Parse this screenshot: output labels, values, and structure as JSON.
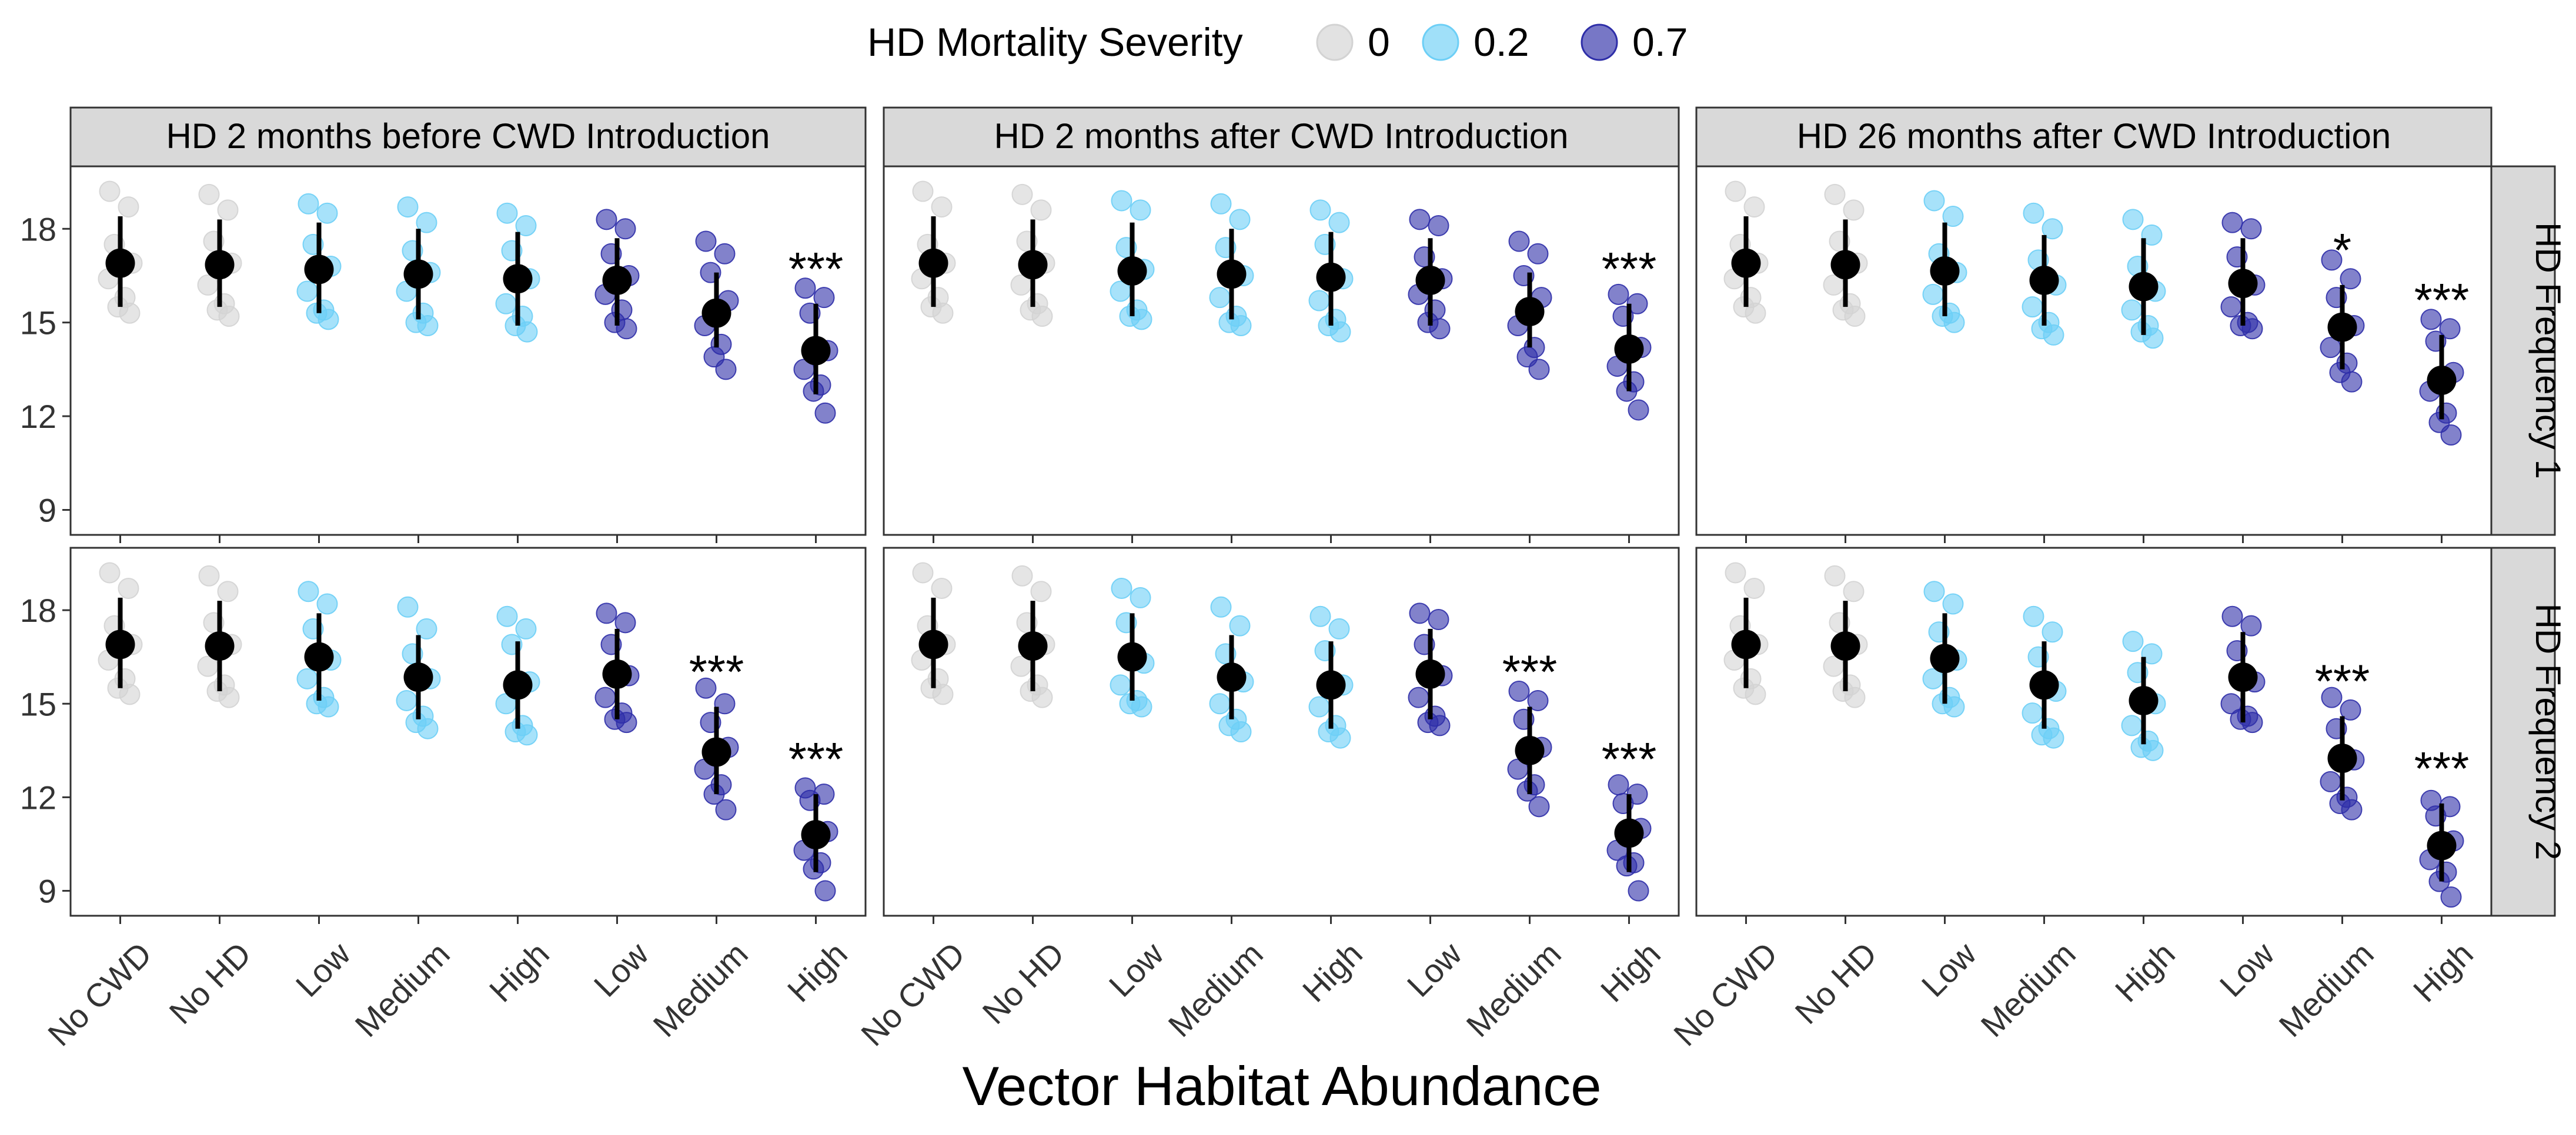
{
  "chart_data": {
    "type": "scatter",
    "legend": {
      "title": "HD Mortality Severity",
      "position": "top",
      "entries": [
        {
          "label": "0",
          "color": "#d3d3d3"
        },
        {
          "label": "0.2",
          "color": "#6dcff6"
        },
        {
          "label": "0.7",
          "color": "#2e2ea8"
        }
      ]
    },
    "xlabel": "Vector Habitat Abundance",
    "ylabel": "",
    "ylim": [
      8.2,
      20.0
    ],
    "yticks": [
      9,
      12,
      15,
      18
    ],
    "categories": [
      "No CWD",
      "No HD",
      "Low",
      "Medium",
      "High",
      "Low",
      "Medium",
      "High"
    ],
    "category_severity": [
      "0",
      "0",
      "0.2",
      "0.2",
      "0.2",
      "0.7",
      "0.7",
      "0.7"
    ],
    "column_facets": [
      "HD 2 months before CWD Introduction",
      "HD 2 months after CWD Introduction",
      "HD 26 months after CWD Introduction"
    ],
    "row_facets": [
      "HD Frequency 1",
      "HD Frequency 2"
    ],
    "panels": [
      {
        "row": "HD Frequency 1",
        "column": "HD 2 months before CWD Introduction",
        "mean": [
          16.9,
          16.85,
          16.7,
          16.55,
          16.4,
          16.35,
          15.3,
          14.1
        ],
        "lower": [
          15.5,
          15.5,
          15.3,
          15.1,
          14.9,
          14.9,
          14.2,
          12.7
        ],
        "upper": [
          18.4,
          18.3,
          18.2,
          18.0,
          17.9,
          17.7,
          16.6,
          15.6
        ],
        "points": [
          [
            19.2,
            18.7,
            17.5,
            16.9,
            16.4,
            15.8,
            15.5,
            15.3
          ],
          [
            19.1,
            18.6,
            17.6,
            16.9,
            16.2,
            15.6,
            15.4,
            15.2
          ],
          [
            18.8,
            18.5,
            17.5,
            16.8,
            16.0,
            15.4,
            15.3,
            15.1
          ],
          [
            18.7,
            18.2,
            17.3,
            16.6,
            16.0,
            15.3,
            15.0,
            14.9
          ],
          [
            18.5,
            18.1,
            17.3,
            16.4,
            15.6,
            15.2,
            14.9,
            14.7
          ],
          [
            18.3,
            18.0,
            17.2,
            16.5,
            15.9,
            15.4,
            15.0,
            14.8
          ],
          [
            17.6,
            17.2,
            16.6,
            15.7,
            14.9,
            14.3,
            13.9,
            13.5
          ],
          [
            16.1,
            15.8,
            15.3,
            14.1,
            13.5,
            13.0,
            12.8,
            12.1
          ]
        ],
        "significance": [
          "",
          "",
          "",
          "",
          "",
          "",
          "",
          "***"
        ]
      },
      {
        "row": "HD Frequency 1",
        "column": "HD 2 months after CWD Introduction",
        "mean": [
          16.9,
          16.85,
          16.65,
          16.55,
          16.45,
          16.35,
          15.35,
          14.15
        ],
        "lower": [
          15.5,
          15.5,
          15.2,
          15.1,
          14.9,
          14.9,
          14.2,
          12.8
        ],
        "upper": [
          18.4,
          18.3,
          18.2,
          18.0,
          17.9,
          17.7,
          16.6,
          15.6
        ],
        "points": [
          [
            19.2,
            18.7,
            17.5,
            16.9,
            16.4,
            15.8,
            15.5,
            15.3
          ],
          [
            19.1,
            18.6,
            17.6,
            16.9,
            16.2,
            15.6,
            15.4,
            15.2
          ],
          [
            18.9,
            18.6,
            17.4,
            16.7,
            16.0,
            15.4,
            15.2,
            15.1
          ],
          [
            18.8,
            18.3,
            17.4,
            16.5,
            15.8,
            15.2,
            15.0,
            14.9
          ],
          [
            18.6,
            18.2,
            17.5,
            16.4,
            15.7,
            15.1,
            14.9,
            14.7
          ],
          [
            18.3,
            18.1,
            17.1,
            16.4,
            15.9,
            15.4,
            15.0,
            14.8
          ],
          [
            17.6,
            17.2,
            16.5,
            15.8,
            14.9,
            14.2,
            13.9,
            13.5
          ],
          [
            15.9,
            15.6,
            15.2,
            14.2,
            13.6,
            13.1,
            12.8,
            12.2
          ]
        ],
        "significance": [
          "",
          "",
          "",
          "",
          "",
          "",
          "",
          "***"
        ]
      },
      {
        "row": "HD Frequency 1",
        "column": "HD 26 months after CWD Introduction",
        "mean": [
          16.9,
          16.85,
          16.65,
          16.35,
          16.15,
          16.25,
          14.85,
          13.15
        ],
        "lower": [
          15.5,
          15.5,
          15.2,
          14.9,
          14.6,
          14.9,
          13.5,
          11.9
        ],
        "upper": [
          18.4,
          18.3,
          18.2,
          17.8,
          17.7,
          17.7,
          16.2,
          14.6
        ],
        "points": [
          [
            19.2,
            18.7,
            17.5,
            16.9,
            16.4,
            15.8,
            15.5,
            15.3
          ],
          [
            19.1,
            18.6,
            17.6,
            16.9,
            16.2,
            15.6,
            15.4,
            15.2
          ],
          [
            18.9,
            18.4,
            17.2,
            16.6,
            15.9,
            15.3,
            15.2,
            15.0
          ],
          [
            18.5,
            18.0,
            17.0,
            16.2,
            15.5,
            15.0,
            14.8,
            14.6
          ],
          [
            18.3,
            17.8,
            16.8,
            16.0,
            15.4,
            14.9,
            14.7,
            14.5
          ],
          [
            18.2,
            18.0,
            17.1,
            16.2,
            15.5,
            15.0,
            14.9,
            14.8
          ],
          [
            17.0,
            16.4,
            15.8,
            14.9,
            14.2,
            13.7,
            13.4,
            13.1
          ],
          [
            15.1,
            14.8,
            14.4,
            13.4,
            12.8,
            12.1,
            11.8,
            11.4
          ]
        ],
        "significance": [
          "",
          "",
          "",
          "",
          "",
          "",
          "*",
          "***"
        ]
      },
      {
        "row": "HD Frequency 2",
        "column": "HD 2 months before CWD Introduction",
        "mean": [
          16.9,
          16.85,
          16.5,
          15.85,
          15.6,
          15.95,
          13.45,
          10.8
        ],
        "lower": [
          15.5,
          15.4,
          15.1,
          14.5,
          14.2,
          14.5,
          12.1,
          9.6
        ],
        "upper": [
          18.4,
          18.3,
          17.9,
          17.2,
          17.0,
          17.4,
          14.9,
          12.1
        ],
        "points": [
          [
            19.2,
            18.7,
            17.5,
            16.9,
            16.4,
            15.8,
            15.5,
            15.3
          ],
          [
            19.1,
            18.6,
            17.6,
            16.9,
            16.2,
            15.6,
            15.4,
            15.2
          ],
          [
            18.6,
            18.2,
            17.4,
            16.4,
            15.8,
            15.2,
            15.0,
            14.9
          ],
          [
            18.1,
            17.4,
            16.6,
            15.8,
            15.1,
            14.6,
            14.4,
            14.2
          ],
          [
            17.8,
            17.4,
            16.9,
            15.7,
            15.0,
            14.3,
            14.1,
            14.0
          ],
          [
            17.9,
            17.6,
            16.9,
            15.9,
            15.2,
            14.7,
            14.5,
            14.4
          ],
          [
            15.5,
            15.0,
            14.4,
            13.6,
            12.9,
            12.4,
            12.1,
            11.6
          ],
          [
            12.3,
            12.1,
            11.9,
            10.9,
            10.3,
            9.9,
            9.7,
            9.0
          ]
        ],
        "significance": [
          "",
          "",
          "",
          "",
          "",
          "",
          "***",
          "***"
        ]
      },
      {
        "row": "HD Frequency 2",
        "column": "HD 2 months after CWD Introduction",
        "mean": [
          16.9,
          16.85,
          16.5,
          15.85,
          15.6,
          15.95,
          13.5,
          10.85
        ],
        "lower": [
          15.5,
          15.4,
          15.1,
          14.5,
          14.2,
          14.5,
          12.1,
          9.6
        ],
        "upper": [
          18.4,
          18.3,
          17.9,
          17.2,
          17.0,
          17.4,
          14.9,
          12.1
        ],
        "points": [
          [
            19.2,
            18.7,
            17.5,
            16.9,
            16.4,
            15.8,
            15.5,
            15.3
          ],
          [
            19.1,
            18.6,
            17.6,
            16.9,
            16.2,
            15.6,
            15.4,
            15.2
          ],
          [
            18.7,
            18.4,
            17.6,
            16.3,
            15.6,
            15.1,
            15.0,
            14.9
          ],
          [
            18.1,
            17.5,
            16.6,
            15.7,
            15.0,
            14.5,
            14.3,
            14.1
          ],
          [
            17.8,
            17.4,
            16.7,
            15.6,
            14.9,
            14.3,
            14.1,
            13.9
          ],
          [
            17.9,
            17.7,
            16.9,
            15.9,
            15.2,
            14.6,
            14.4,
            14.3
          ],
          [
            15.4,
            15.1,
            14.5,
            13.6,
            12.9,
            12.4,
            12.2,
            11.7
          ],
          [
            12.4,
            12.1,
            11.8,
            11.0,
            10.3,
            9.9,
            9.8,
            9.0
          ]
        ],
        "significance": [
          "",
          "",
          "",
          "",
          "",
          "",
          "***",
          "***"
        ]
      },
      {
        "row": "HD Frequency 2",
        "column": "HD 26 months after CWD Introduction",
        "mean": [
          16.9,
          16.85,
          16.45,
          15.6,
          15.1,
          15.85,
          13.25,
          10.45
        ],
        "lower": [
          15.5,
          15.4,
          15.0,
          14.2,
          13.7,
          14.4,
          11.9,
          9.3
        ],
        "upper": [
          18.4,
          18.3,
          17.9,
          17.0,
          16.5,
          17.3,
          14.6,
          11.8
        ],
        "points": [
          [
            19.2,
            18.7,
            17.5,
            16.9,
            16.4,
            15.8,
            15.5,
            15.3
          ],
          [
            19.1,
            18.6,
            17.6,
            16.9,
            16.2,
            15.6,
            15.4,
            15.2
          ],
          [
            18.6,
            18.2,
            17.3,
            16.4,
            15.8,
            15.2,
            15.0,
            14.9
          ],
          [
            17.8,
            17.3,
            16.5,
            15.4,
            14.7,
            14.2,
            14.0,
            13.9
          ],
          [
            17.0,
            16.6,
            16.0,
            15.0,
            14.3,
            13.8,
            13.6,
            13.5
          ],
          [
            17.8,
            17.5,
            16.7,
            15.7,
            15.0,
            14.6,
            14.5,
            14.4
          ],
          [
            15.2,
            14.8,
            14.2,
            13.2,
            12.5,
            12.0,
            11.8,
            11.6
          ],
          [
            11.9,
            11.7,
            11.4,
            10.6,
            10.0,
            9.6,
            9.3,
            8.8
          ]
        ],
        "significance": [
          "",
          "",
          "",
          "",
          "",
          "",
          "***",
          "***"
        ]
      }
    ]
  }
}
